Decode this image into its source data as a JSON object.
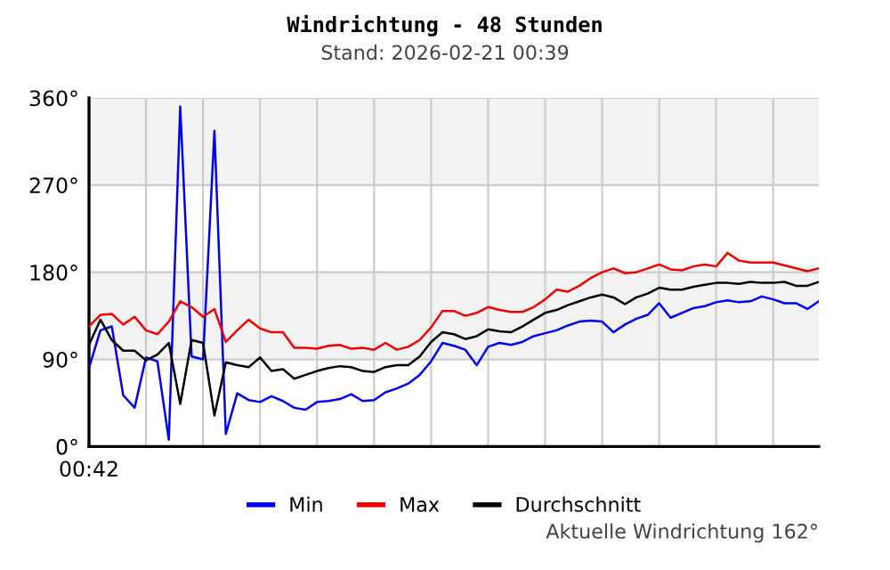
{
  "chart_data": {
    "type": "line",
    "title": "Windrichtung - 48 Stunden",
    "subtitle": "Stand: 2026-02-21 00:39",
    "annotations": [
      "00:42",
      "Aktuelle Windrichtung 162°"
    ],
    "categories": [
      null,
      null,
      null,
      null,
      null,
      null,
      null,
      null,
      null,
      null,
      null,
      null,
      null,
      null,
      null,
      null,
      null,
      null,
      null,
      null,
      null,
      null,
      null,
      null,
      null,
      null,
      null,
      null,
      null,
      null,
      null,
      null,
      null,
      null,
      null,
      null,
      null,
      null,
      null,
      null,
      null,
      null,
      null,
      null,
      null,
      null,
      null,
      null,
      null,
      null,
      null,
      null,
      null,
      null,
      null,
      null,
      null,
      null,
      null,
      null,
      null,
      null,
      null,
      null,
      null
    ],
    "ylim": [
      0,
      360
    ],
    "yticks": [
      {
        "value": 0,
        "label": "0°"
      },
      {
        "value": 90,
        "label": "90°"
      },
      {
        "value": 180,
        "label": "180°"
      },
      {
        "value": 270,
        "label": "270°"
      },
      {
        "value": 360,
        "label": "360°"
      }
    ],
    "bands": [
      {
        "axis": "y",
        "from": 90,
        "to": 180,
        "color": "#f2f2f2"
      },
      {
        "axis": "y",
        "from": 270,
        "to": 360,
        "color": "#f2f2f2"
      }
    ],
    "grid": true,
    "legend": "bottom",
    "line_style": "solid",
    "series": [
      {
        "name": "Min",
        "color": "#0000ee",
        "values": [
          81,
          120,
          124,
          53,
          40,
          92,
          88,
          7,
          351,
          93,
          90,
          326,
          13,
          55,
          48,
          46,
          52,
          47,
          40,
          38,
          46,
          47,
          49,
          54,
          47,
          48,
          56,
          60,
          65,
          74,
          88,
          107,
          104,
          100,
          84,
          103,
          107,
          105,
          108,
          114,
          117,
          120,
          125,
          129,
          130,
          129,
          118,
          126,
          132,
          136,
          148,
          133,
          138,
          143,
          145,
          149,
          151,
          149,
          150,
          155,
          152,
          148,
          148,
          142,
          150
        ]
      },
      {
        "name": "Max",
        "color": "#ee0000",
        "values": [
          124,
          136,
          137,
          126,
          134,
          120,
          116,
          129,
          150,
          144,
          134,
          142,
          108,
          120,
          131,
          122,
          118,
          118,
          102,
          102,
          101,
          104,
          105,
          101,
          102,
          100,
          107,
          100,
          103,
          110,
          123,
          140,
          140,
          135,
          138,
          144,
          141,
          139,
          139,
          144,
          152,
          162,
          160,
          166,
          174,
          180,
          184,
          179,
          180,
          184,
          188,
          183,
          182,
          186,
          188,
          186,
          200,
          192,
          190,
          190,
          190,
          187,
          184,
          181,
          184
        ]
      },
      {
        "name": "Durchschnitt",
        "color": "#000000",
        "values": [
          105,
          131,
          110,
          99,
          99,
          89,
          95,
          107,
          44,
          110,
          107,
          32,
          87,
          84,
          82,
          92,
          78,
          80,
          70,
          74,
          78,
          81,
          83,
          82,
          78,
          77,
          82,
          84,
          84,
          93,
          108,
          118,
          116,
          111,
          114,
          121,
          119,
          118,
          124,
          131,
          138,
          141,
          146,
          150,
          154,
          157,
          154,
          147,
          154,
          158,
          164,
          162,
          162,
          165,
          167,
          169,
          169,
          168,
          170,
          169,
          169,
          170,
          166,
          166,
          170
        ]
      }
    ]
  }
}
